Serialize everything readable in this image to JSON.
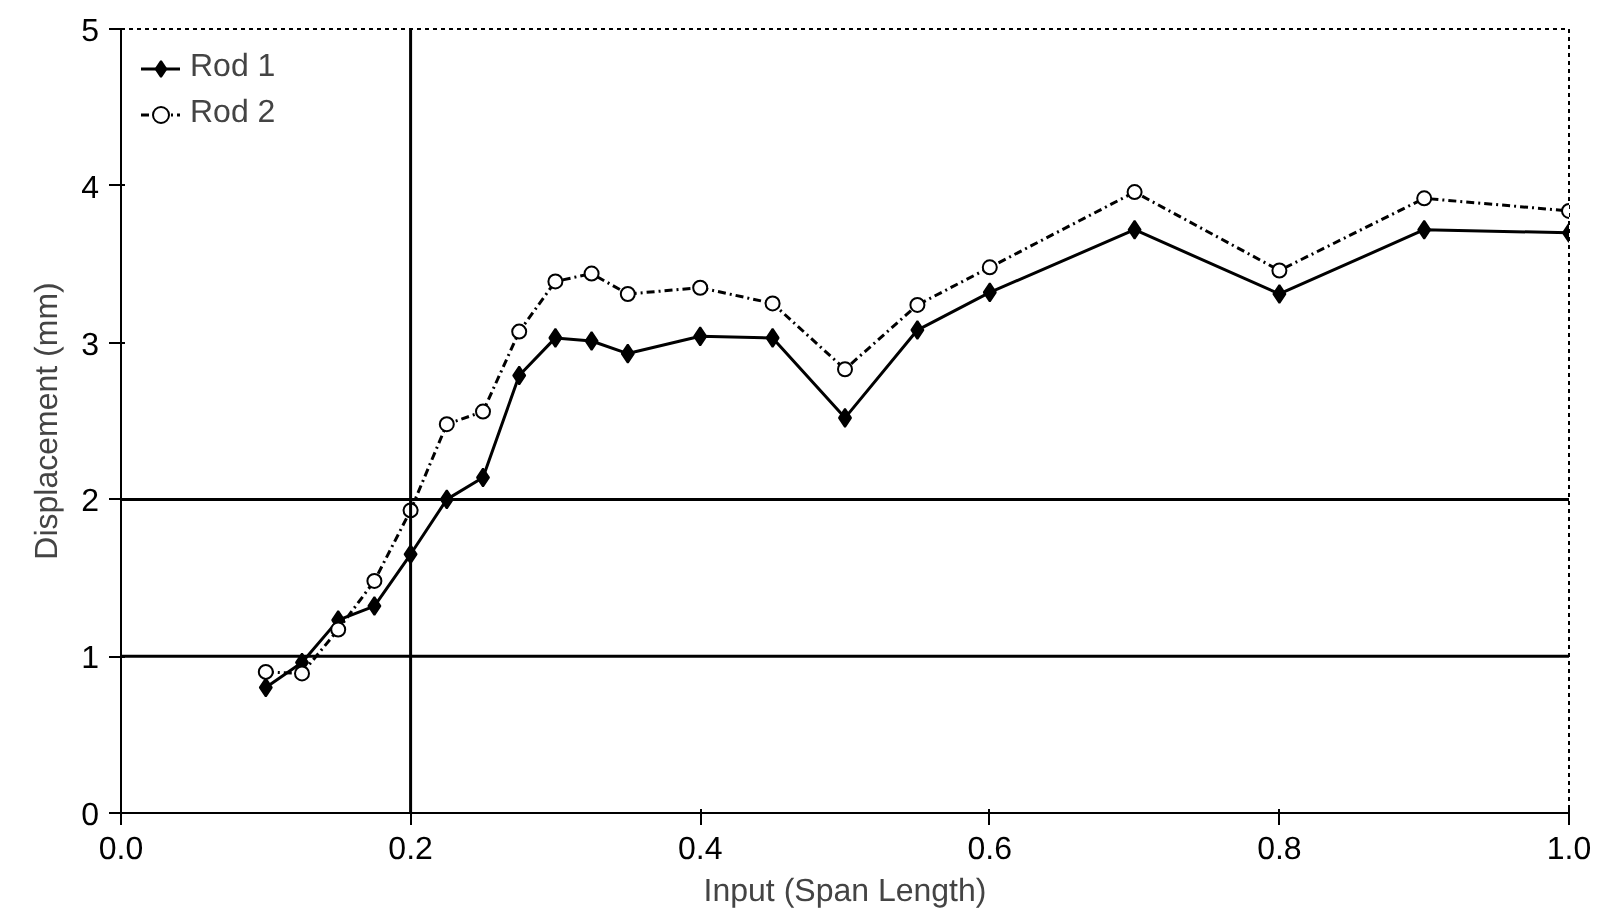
{
  "chart_data": {
    "type": "line",
    "xlabel": "Input (Span Length)",
    "ylabel": "Displacement (mm)",
    "x": [
      0.1,
      0.125,
      0.15,
      0.175,
      0.2,
      0.225,
      0.25,
      0.275,
      0.3,
      0.325,
      0.35,
      0.4,
      0.45,
      0.5,
      0.55,
      0.6,
      0.7,
      0.8,
      0.9,
      1.0
    ],
    "series": [
      {
        "name": "Rod 1",
        "color": "#000000",
        "marker": "diamond",
        "line_style": "solid",
        "values": [
          0.8,
          0.96,
          1.23,
          1.32,
          1.65,
          2.0,
          2.14,
          2.79,
          3.03,
          3.01,
          2.93,
          3.04,
          3.03,
          2.52,
          3.08,
          3.32,
          3.72,
          3.31,
          3.72,
          3.7
        ]
      },
      {
        "name": "Rod 2",
        "color": "#000000",
        "marker": "circle",
        "line_style": "dotted",
        "values": [
          0.9,
          0.89,
          1.17,
          1.48,
          1.93,
          2.48,
          2.56,
          3.07,
          3.39,
          3.44,
          3.31,
          3.35,
          3.25,
          2.83,
          3.24,
          3.48,
          3.96,
          3.46,
          3.92,
          3.84
        ]
      }
    ],
    "xlim": [
      0.0,
      1.0
    ],
    "xticks": [
      {
        "value": 0.0,
        "label": "0.0"
      },
      {
        "value": 0.2,
        "label": "0.2"
      },
      {
        "value": 0.4,
        "label": "0.4"
      },
      {
        "value": 0.6,
        "label": "0.6"
      },
      {
        "value": 0.8,
        "label": "0.8"
      },
      {
        "value": 1.0,
        "label": "1.0"
      }
    ],
    "ylim": [
      0,
      5
    ],
    "yticks": [
      0,
      1,
      2,
      3,
      4,
      5
    ],
    "ref_lines": [
      {
        "axis": "y",
        "value": 1,
        "color": "#000000"
      },
      {
        "axis": "y",
        "value": 2,
        "color": "#000000"
      },
      {
        "axis": "x",
        "value": 0.2,
        "color": "#000000"
      }
    ],
    "grid": false,
    "legend": "top left"
  }
}
